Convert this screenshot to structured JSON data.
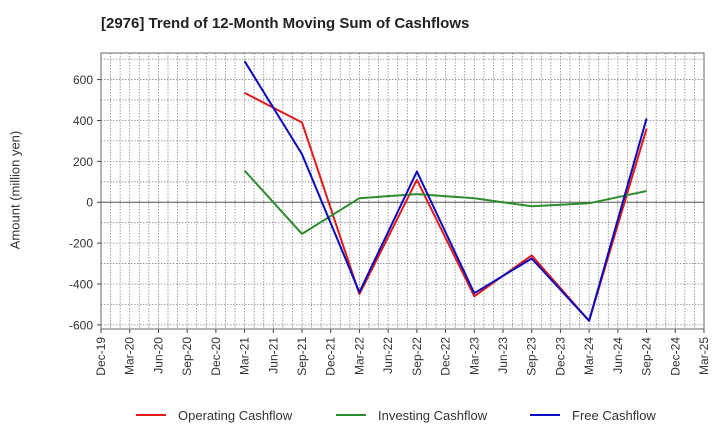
{
  "chart_data": {
    "type": "line",
    "title": "[2976]  Trend of 12-Month Moving Sum of Cashflows",
    "ylabel": "Amount (million yen)",
    "xlabel": "",
    "ylim": [
      -620,
      730
    ],
    "yticks": [
      600,
      400,
      200,
      0,
      -200,
      -400,
      -600
    ],
    "ytick_labels": [
      "600",
      "400",
      "200",
      "0",
      "-200",
      "-400",
      "-600"
    ],
    "categories": [
      "Dec-19",
      "Mar-20",
      "Jun-20",
      "Sep-20",
      "Dec-20",
      "Mar-21",
      "Jun-21",
      "Sep-21",
      "Dec-21",
      "Mar-22",
      "Jun-22",
      "Sep-22",
      "Dec-22",
      "Mar-23",
      "Jun-23",
      "Sep-23",
      "Dec-23",
      "Mar-24",
      "Jun-24",
      "Sep-24",
      "Dec-24",
      "Mar-25"
    ],
    "grid": true,
    "legend_position": "bottom",
    "series": [
      {
        "name": "Operating Cashflow",
        "color": "#e31a1c",
        "values": [
          null,
          null,
          null,
          null,
          null,
          535,
          null,
          390,
          null,
          -450,
          null,
          110,
          null,
          -460,
          null,
          -260,
          null,
          -580,
          null,
          360,
          null,
          null
        ]
      },
      {
        "name": "Investing Cashflow",
        "color": "#2e8b2e",
        "values": [
          null,
          null,
          null,
          null,
          null,
          155,
          null,
          -155,
          null,
          20,
          null,
          40,
          null,
          20,
          null,
          -20,
          null,
          -5,
          null,
          55,
          null,
          null
        ]
      },
      {
        "name": "Free Cashflow",
        "color": "#0b0bbf",
        "values": [
          null,
          null,
          null,
          null,
          null,
          690,
          null,
          235,
          null,
          -440,
          null,
          150,
          null,
          -445,
          null,
          -275,
          null,
          -580,
          null,
          410,
          null,
          null
        ]
      }
    ]
  }
}
